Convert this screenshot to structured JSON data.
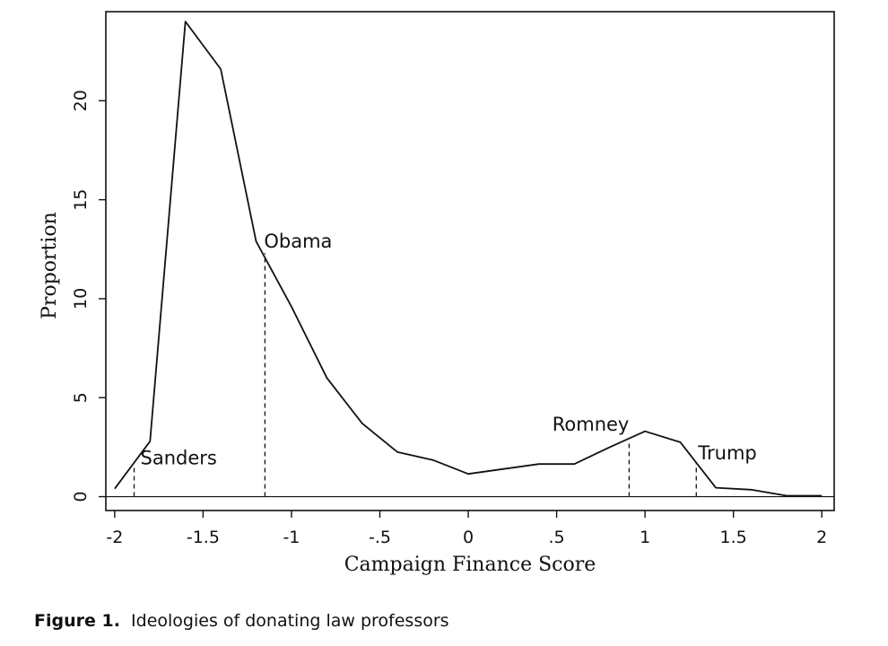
{
  "caption": {
    "label": "Figure 1.",
    "text": "Ideologies of donating law professors"
  },
  "chart_data": {
    "type": "line",
    "title": "",
    "xlabel": "Campaign Finance Score",
    "ylabel": "Proportion",
    "xlim": [
      -2.05,
      2.07
    ],
    "ylim": [
      -0.7,
      24.5
    ],
    "xticks": [
      -2,
      -1.5,
      -1,
      -0.5,
      0,
      0.5,
      1,
      1.5,
      2
    ],
    "xtick_labels": [
      "-2",
      "-1.5",
      "-1",
      "-.5",
      "0",
      ".5",
      "1",
      "1.5",
      "2"
    ],
    "yticks": [
      0,
      5,
      10,
      15,
      20
    ],
    "ytick_labels": [
      "0",
      "5",
      "10",
      "15",
      "20"
    ],
    "grid": false,
    "series": [
      {
        "x": [
          -2,
          -1.8,
          -1.6,
          -1.4,
          -1.2,
          -1.0,
          -0.8,
          -0.6,
          -0.4,
          -0.2,
          0,
          0.2,
          0.4,
          0.6,
          0.8,
          1.0,
          1.2,
          1.4,
          1.6,
          1.8,
          2.0
        ],
        "y": [
          0.4,
          2.8,
          24,
          21.6,
          12.9,
          9.6,
          6.0,
          3.7,
          2.25,
          1.85,
          1.15,
          1.4,
          1.65,
          1.65,
          2.5,
          3.3,
          2.75,
          0.45,
          0.35,
          0.05,
          0.05
        ]
      }
    ],
    "annotations": [
      {
        "text": "Sanders",
        "x": -1.89,
        "y": 1.6
      },
      {
        "text": "Obama",
        "x": -1.15,
        "y": 12.3
      },
      {
        "text": "Romney",
        "x": 0.91,
        "y": 2.8
      },
      {
        "text": "Trump",
        "x": 1.29,
        "y": 1.7
      }
    ]
  }
}
